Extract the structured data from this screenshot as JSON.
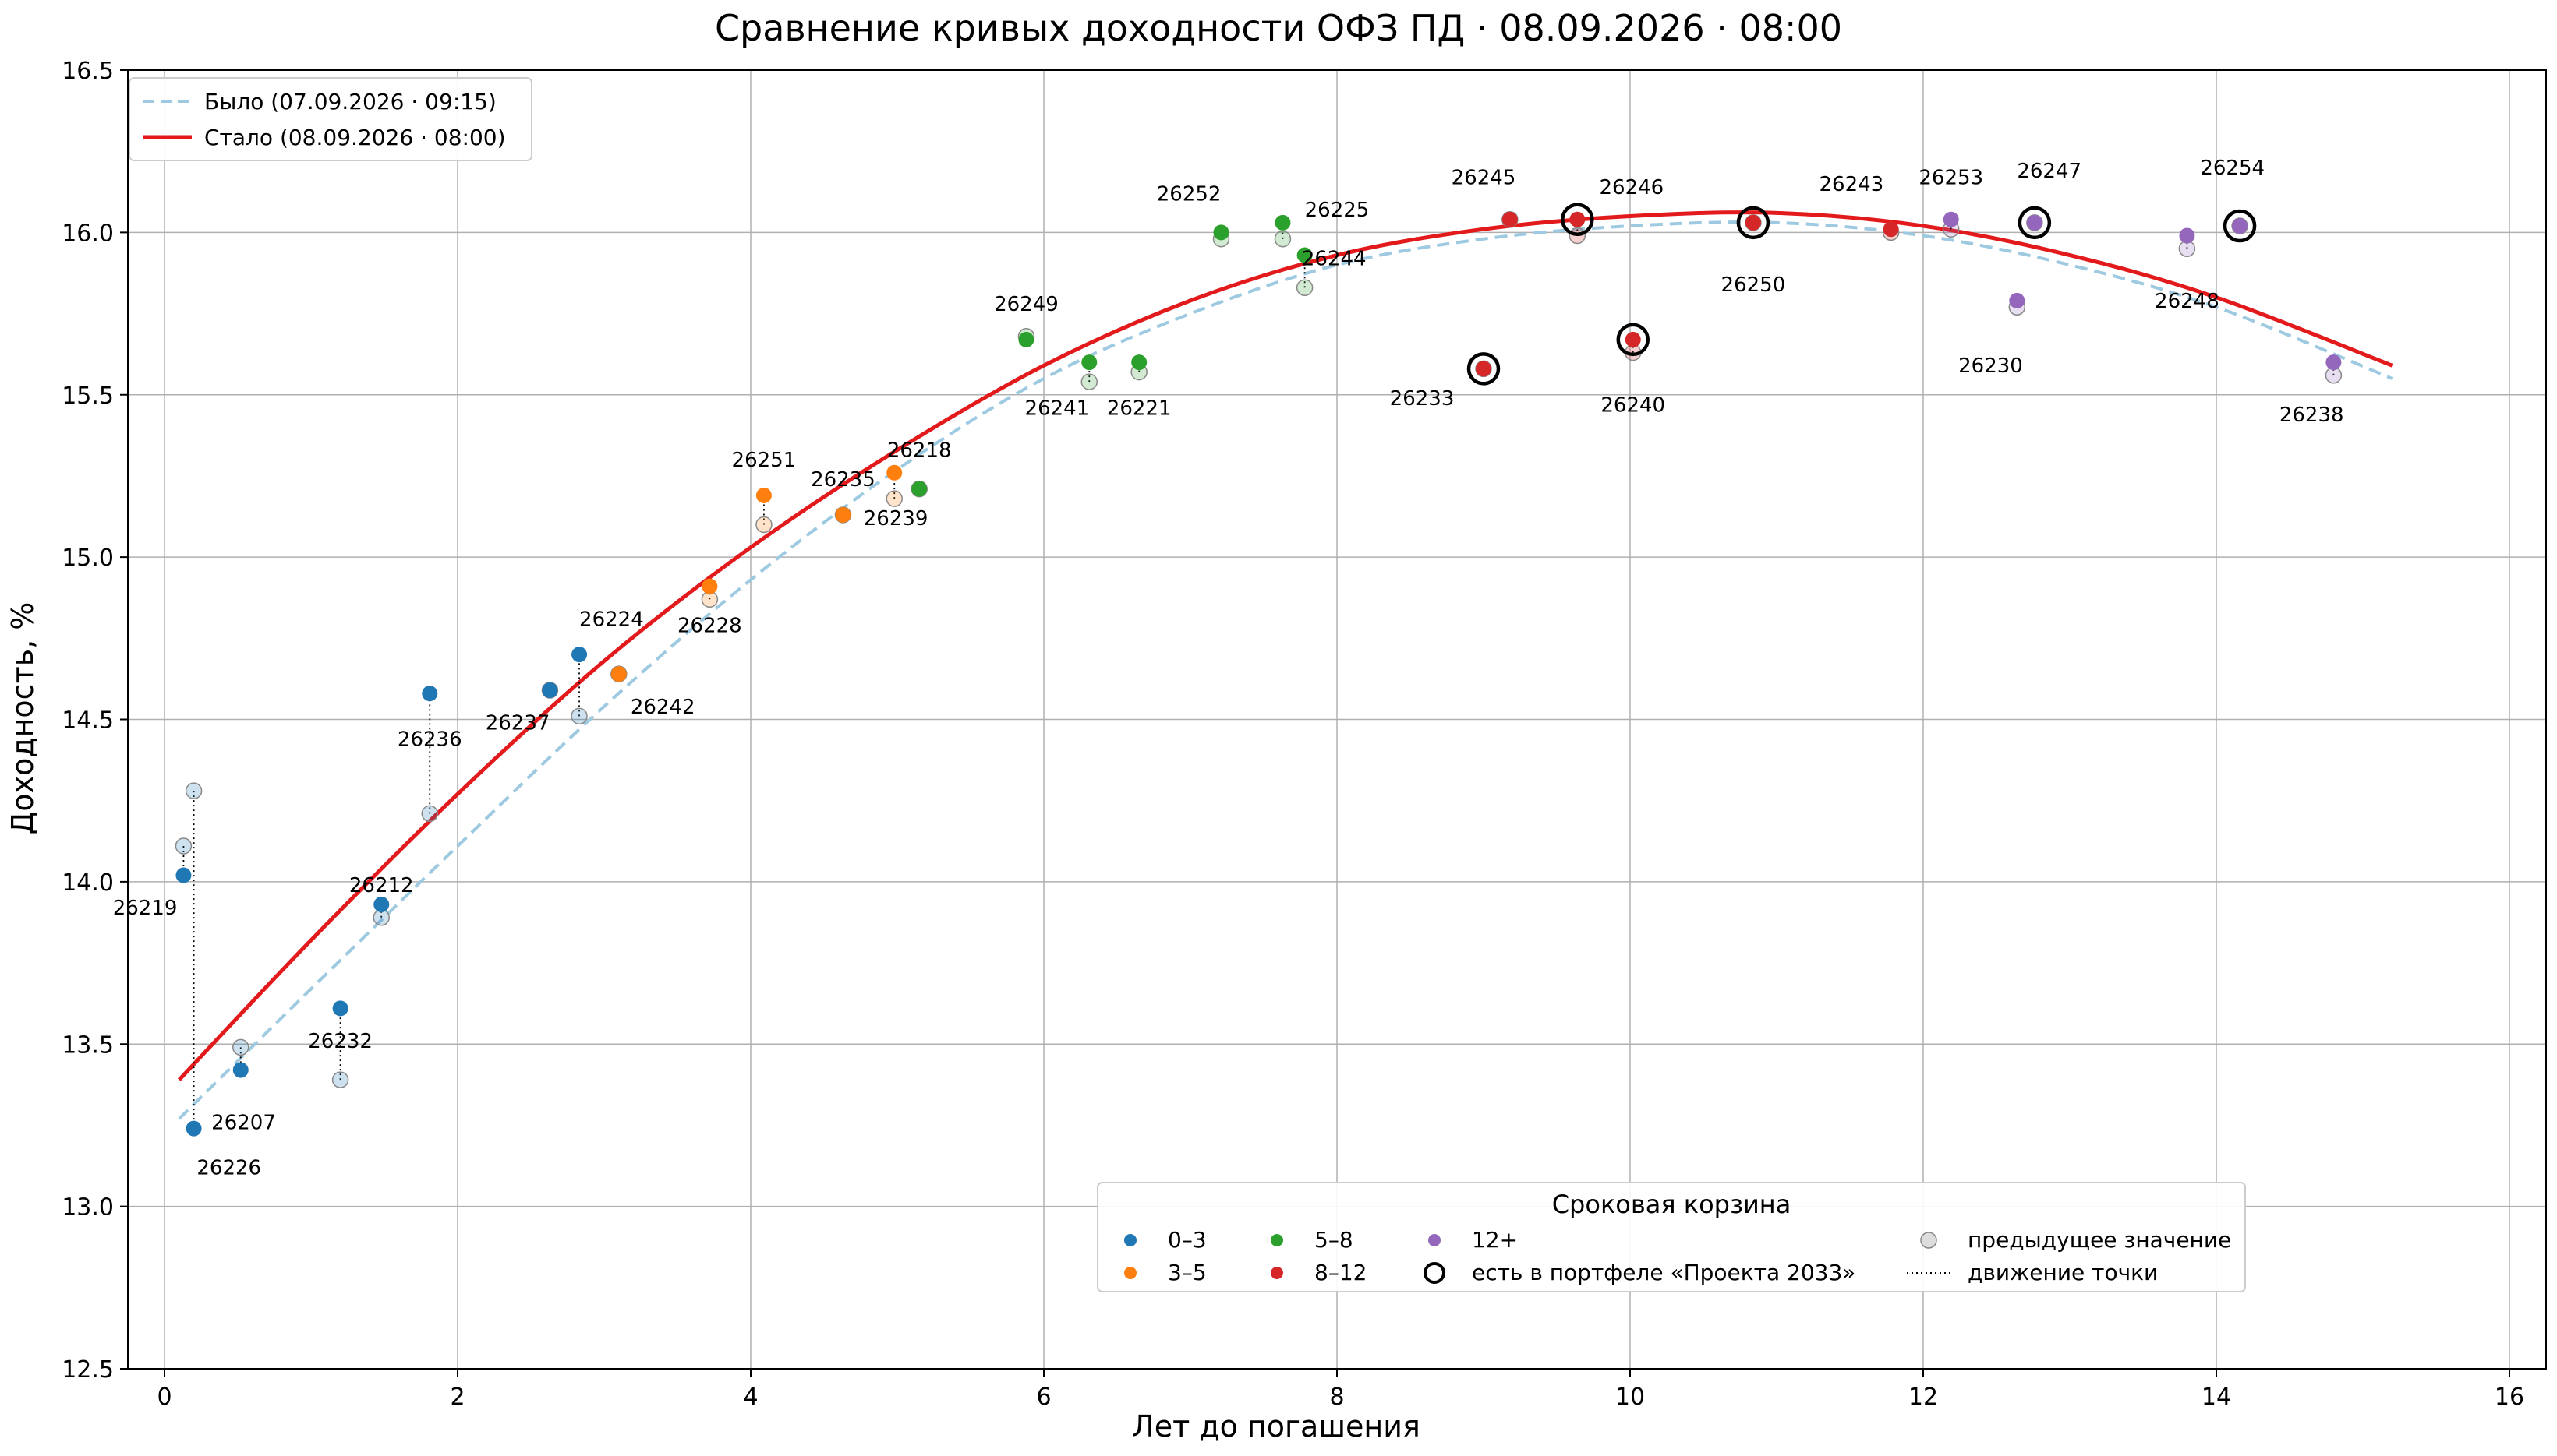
{
  "chart_data": {
    "type": "scatter",
    "title": "Сравнение кривых доходности ОФЗ ПД · 08.09.2026 · 08:00",
    "xlabel": "Лет до погашения",
    "ylabel": "Доходность, %",
    "xlim": [
      -0.25,
      16.25
    ],
    "ylim": [
      12.5,
      16.5
    ],
    "xticks": [
      0,
      2,
      4,
      6,
      8,
      10,
      12,
      14,
      16
    ],
    "yticks": [
      12.5,
      13.0,
      13.5,
      14.0,
      14.5,
      15.0,
      15.5,
      16.0,
      16.5
    ],
    "grid": true,
    "curves": [
      {
        "name": "Было (07.09.2026 · 09:15)",
        "style": "dashed",
        "color": "#9ecae1",
        "points": [
          [
            0.1,
            13.27
          ],
          [
            1,
            13.67
          ],
          [
            2,
            14.11
          ],
          [
            3,
            14.54
          ],
          [
            4,
            14.93
          ],
          [
            5,
            15.27
          ],
          [
            6,
            15.55
          ],
          [
            7,
            15.75
          ],
          [
            8,
            15.9
          ],
          [
            9,
            15.98
          ],
          [
            10,
            16.02
          ],
          [
            11,
            16.03
          ],
          [
            12,
            15.99
          ],
          [
            13,
            15.9
          ],
          [
            14,
            15.77
          ],
          [
            15.2,
            15.55
          ]
        ]
      },
      {
        "name": "Стало (08.09.2026 · 08:00)",
        "style": "solid",
        "color": "#e31a1c",
        "points": [
          [
            0.1,
            13.39
          ],
          [
            1,
            13.82
          ],
          [
            2,
            14.27
          ],
          [
            3,
            14.68
          ],
          [
            4,
            15.03
          ],
          [
            5,
            15.33
          ],
          [
            6,
            15.59
          ],
          [
            7,
            15.79
          ],
          [
            8,
            15.93
          ],
          [
            9,
            16.01
          ],
          [
            10,
            16.05
          ],
          [
            11,
            16.06
          ],
          [
            12,
            16.02
          ],
          [
            13,
            15.93
          ],
          [
            14,
            15.8
          ],
          [
            15.2,
            15.59
          ]
        ]
      }
    ],
    "buckets": [
      {
        "name": "0–3",
        "color": "#1f77b4"
      },
      {
        "name": "3–5",
        "color": "#ff7f0e"
      },
      {
        "name": "5–8",
        "color": "#2ca02c"
      },
      {
        "name": "8–12",
        "color": "#d62728"
      },
      {
        "name": "12+",
        "color": "#9467bd"
      }
    ],
    "bonds": [
      {
        "label": "26219",
        "x": 0.13,
        "prev": 14.11,
        "y": 14.02,
        "bucket": 0,
        "portfolio": false,
        "la": "end",
        "ldx": -8,
        "ldy": -0.1
      },
      {
        "label": "26226",
        "x": 0.2,
        "prev": 14.28,
        "y": 13.24,
        "bucket": 0,
        "portfolio": false,
        "la": "start",
        "ldx": 0.02,
        "ldy": -0.12
      },
      {
        "label": "26207",
        "x": 0.52,
        "prev": 13.49,
        "y": 13.42,
        "bucket": 0,
        "portfolio": false,
        "la": "start",
        "ldx": -0.2,
        "ldy": -0.16
      },
      {
        "label": "26232",
        "x": 1.2,
        "prev": 13.39,
        "y": 13.61,
        "bucket": 0,
        "portfolio": false,
        "la": "middle",
        "ldx": 0,
        "ldy": -0.1
      },
      {
        "label": "26212",
        "x": 1.48,
        "prev": 13.89,
        "y": 13.93,
        "bucket": 0,
        "portfolio": false,
        "la": "middle",
        "ldx": 0,
        "ldy": 0.06
      },
      {
        "label": "26236",
        "x": 1.81,
        "prev": 14.21,
        "y": 14.58,
        "bucket": 0,
        "portfolio": false,
        "la": "middle",
        "ldx": 0,
        "ldy": -0.14
      },
      {
        "label": "26237",
        "x": 2.63,
        "prev": 14.59,
        "y": 14.59,
        "bucket": 0,
        "portfolio": false,
        "la": "middle",
        "ldx": -0.22,
        "ldy": -0.1
      },
      {
        "label": "26224",
        "x": 2.83,
        "prev": 14.51,
        "y": 14.7,
        "bucket": 0,
        "portfolio": false,
        "la": "middle",
        "ldx": 0.22,
        "ldy": 0.11
      },
      {
        "label": "26242",
        "x": 3.1,
        "prev": 14.64,
        "y": 14.64,
        "bucket": 1,
        "portfolio": false,
        "la": "middle",
        "ldx": 0.3,
        "ldy": -0.1
      },
      {
        "label": "26228",
        "x": 3.72,
        "prev": 14.87,
        "y": 14.91,
        "bucket": 1,
        "portfolio": false,
        "la": "middle",
        "ldx": 0,
        "ldy": -0.12
      },
      {
        "label": "26251",
        "x": 4.09,
        "prev": 15.1,
        "y": 15.19,
        "bucket": 1,
        "portfolio": false,
        "la": "middle",
        "ldx": 0,
        "ldy": 0.11
      },
      {
        "label": "26235",
        "x": 4.63,
        "prev": 15.13,
        "y": 15.13,
        "bucket": 1,
        "portfolio": false,
        "la": "middle",
        "ldx": 0,
        "ldy": 0.11
      },
      {
        "label": "26218",
        "x": 4.98,
        "prev": 15.18,
        "y": 15.26,
        "bucket": 1,
        "portfolio": false,
        "la": "middle",
        "ldx": 0.17,
        "ldy": 0.07
      },
      {
        "label": "26239",
        "x": 5.15,
        "prev": 15.21,
        "y": 15.21,
        "bucket": 2,
        "portfolio": false,
        "la": "middle",
        "ldx": -0.16,
        "ldy": -0.09
      },
      {
        "label": "26249",
        "x": 5.88,
        "prev": 15.68,
        "y": 15.67,
        "bucket": 2,
        "portfolio": false,
        "la": "middle",
        "ldx": 0,
        "ldy": 0.11
      },
      {
        "label": "26241",
        "x": 6.31,
        "prev": 15.54,
        "y": 15.6,
        "bucket": 2,
        "portfolio": false,
        "la": "middle",
        "ldx": -0.22,
        "ldy": -0.14
      },
      {
        "label": "26221",
        "x": 6.65,
        "prev": 15.57,
        "y": 15.6,
        "bucket": 2,
        "portfolio": false,
        "la": "middle",
        "ldx": 0,
        "ldy": -0.14
      },
      {
        "label": "26252",
        "x": 7.21,
        "prev": 15.98,
        "y": 16.0,
        "bucket": 2,
        "portfolio": false,
        "la": "middle",
        "ldx": -0.22,
        "ldy": 0.12
      },
      {
        "label": "26225",
        "x": 7.63,
        "prev": 15.98,
        "y": 16.03,
        "bucket": 2,
        "portfolio": false,
        "la": "start",
        "ldx": 0.15,
        "ldy": 0.04
      },
      {
        "label": "26244",
        "x": 7.78,
        "prev": 15.83,
        "y": 15.93,
        "bucket": 2,
        "portfolio": false,
        "la": "start",
        "ldx": -0.02,
        "ldy": -0.01
      },
      {
        "label": "26233",
        "x": 9.0,
        "prev": 15.58,
        "y": 15.58,
        "bucket": 3,
        "portfolio": true,
        "la": "end",
        "ldx": -0.2,
        "ldy": -0.09
      },
      {
        "label": "26245",
        "x": 9.18,
        "prev": 16.04,
        "y": 16.04,
        "bucket": 3,
        "portfolio": false,
        "la": "middle",
        "ldx": -0.18,
        "ldy": 0.13
      },
      {
        "label": "26246",
        "x": 9.64,
        "prev": 15.99,
        "y": 16.04,
        "bucket": 3,
        "portfolio": true,
        "la": "middle",
        "ldx": 0.37,
        "ldy": 0.1
      },
      {
        "label": "26240",
        "x": 10.02,
        "prev": 15.63,
        "y": 15.67,
        "bucket": 3,
        "portfolio": true,
        "la": "middle",
        "ldx": 0,
        "ldy": -0.2
      },
      {
        "label": "26250",
        "x": 10.84,
        "prev": 16.03,
        "y": 16.03,
        "bucket": 3,
        "portfolio": true,
        "la": "middle",
        "ldx": 0,
        "ldy": -0.19
      },
      {
        "label": "26243",
        "x": 11.78,
        "prev": 16.0,
        "y": 16.01,
        "bucket": 3,
        "portfolio": false,
        "la": "middle",
        "ldx": -0.27,
        "ldy": 0.14
      },
      {
        "label": "26253",
        "x": 12.19,
        "prev": 16.01,
        "y": 16.04,
        "bucket": 4,
        "portfolio": false,
        "la": "middle",
        "ldx": 0,
        "ldy": 0.13
      },
      {
        "label": "26230",
        "x": 12.64,
        "prev": 15.77,
        "y": 15.79,
        "bucket": 4,
        "portfolio": false,
        "la": "middle",
        "ldx": -0.18,
        "ldy": -0.2
      },
      {
        "label": "26247",
        "x": 12.76,
        "prev": 16.03,
        "y": 16.03,
        "bucket": 4,
        "portfolio": true,
        "la": "middle",
        "ldx": 0.1,
        "ldy": 0.16
      },
      {
        "label": "26248",
        "x": 13.8,
        "prev": 15.95,
        "y": 15.99,
        "bucket": 4,
        "portfolio": false,
        "la": "middle",
        "ldx": 0,
        "ldy": -0.2
      },
      {
        "label": "26254",
        "x": 14.16,
        "prev": 16.02,
        "y": 16.02,
        "bucket": 4,
        "portfolio": true,
        "la": "middle",
        "ldx": -0.05,
        "ldy": 0.18
      },
      {
        "label": "26238",
        "x": 14.8,
        "prev": 15.56,
        "y": 15.6,
        "bucket": 4,
        "portfolio": false,
        "la": "middle",
        "ldx": -0.15,
        "ldy": -0.16
      }
    ],
    "legend_top": {
      "placement": "upper-left",
      "items": [
        "Было (07.09.2026 · 09:15)",
        "Стало (08.09.2026 · 08:00)"
      ]
    },
    "legend_bottom": {
      "placement": "lower-right",
      "title": "Сроковая корзина",
      "portfolio_label": "есть в портфеле «Проекта 2033»",
      "prev_label": "предыдущее значение",
      "move_label": "движение точки"
    }
  }
}
